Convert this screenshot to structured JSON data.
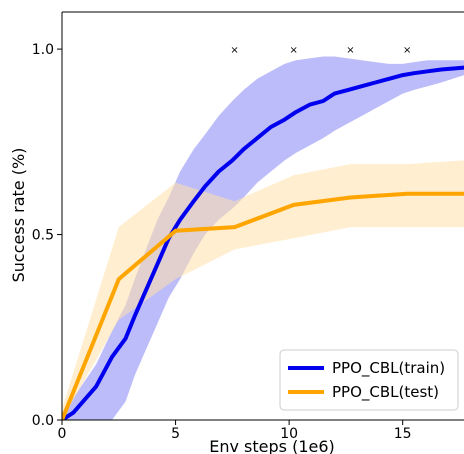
{
  "chart_data": {
    "type": "line",
    "title": "",
    "xlabel": "Env steps (1e6)",
    "ylabel": "Success rate (%)",
    "xlim": [
      0,
      17.7
    ],
    "ylim": [
      0,
      1.1
    ],
    "xticks": [
      0,
      5,
      10,
      15
    ],
    "xtick_labels": [
      "0",
      "5",
      "10",
      "15"
    ],
    "yticks": [
      0.0,
      0.5,
      1.0
    ],
    "ytick_labels": [
      "0.0",
      "0.5",
      "1.0"
    ],
    "grid": false,
    "legend": {
      "placement": "bottom-right"
    },
    "series": [
      {
        "name": "PPO_CBL(train)",
        "color": "#0000ee",
        "band_color": "#6a6af5",
        "x": [
          0,
          0.5,
          1.5,
          2.2,
          2.8,
          3.2,
          3.7,
          4.2,
          4.7,
          5.2,
          5.8,
          6.3,
          6.9,
          7.5,
          8.0,
          8.6,
          9.2,
          9.8,
          10.3,
          10.9,
          11.5,
          12.0,
          12.6,
          13.2,
          13.8,
          14.4,
          15.0,
          15.5,
          16.1,
          16.7,
          17.7
        ],
        "y": [
          0.0,
          0.02,
          0.09,
          0.17,
          0.22,
          0.28,
          0.35,
          0.42,
          0.49,
          0.54,
          0.59,
          0.63,
          0.67,
          0.7,
          0.73,
          0.76,
          0.79,
          0.81,
          0.83,
          0.85,
          0.86,
          0.88,
          0.89,
          0.9,
          0.91,
          0.92,
          0.93,
          0.935,
          0.94,
          0.945,
          0.95
        ],
        "lower": [
          0.0,
          0.0,
          0.0,
          0.0,
          0.05,
          0.12,
          0.19,
          0.26,
          0.33,
          0.38,
          0.45,
          0.5,
          0.54,
          0.57,
          0.6,
          0.64,
          0.67,
          0.7,
          0.72,
          0.74,
          0.76,
          0.78,
          0.8,
          0.82,
          0.84,
          0.86,
          0.88,
          0.89,
          0.9,
          0.91,
          0.93
        ],
        "upper": [
          0.02,
          0.06,
          0.15,
          0.24,
          0.31,
          0.38,
          0.46,
          0.54,
          0.6,
          0.67,
          0.73,
          0.77,
          0.82,
          0.86,
          0.89,
          0.92,
          0.94,
          0.96,
          0.97,
          0.975,
          0.98,
          0.98,
          0.975,
          0.97,
          0.965,
          0.96,
          0.96,
          0.965,
          0.97,
          0.97,
          0.97
        ]
      },
      {
        "name": "PPO_CBL(test)",
        "color": "#ffa500",
        "band_color": "#ffe0a8",
        "x": [
          0,
          2.5,
          5.0,
          7.6,
          10.2,
          12.7,
          15.2,
          17.7
        ],
        "y": [
          0.0,
          0.38,
          0.51,
          0.52,
          0.58,
          0.6,
          0.61,
          0.61
        ],
        "lower": [
          0.0,
          0.27,
          0.38,
          0.46,
          0.49,
          0.52,
          0.52,
          0.52
        ],
        "upper": [
          0.03,
          0.52,
          0.64,
          0.59,
          0.66,
          0.69,
          0.69,
          0.7
        ]
      }
    ],
    "markers": {
      "symbol": "×",
      "x": [
        7.6,
        10.2,
        12.7,
        15.2
      ],
      "y": [
        1.0,
        1.0,
        1.0,
        1.0
      ]
    }
  }
}
